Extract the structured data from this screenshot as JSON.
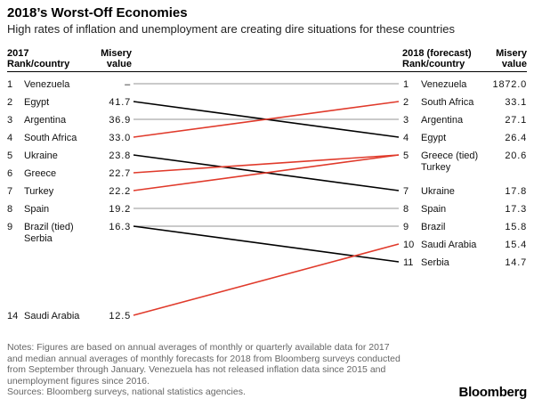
{
  "header": {
    "title": "2018’s Worst-Off Economies",
    "subtitle": "High rates of inflation and unemployment are creating dire situations for these countries"
  },
  "columns": {
    "left_rank_line1": "2017",
    "left_rank_line2": "Rank/country",
    "left_value_line1": "Misery",
    "left_value_line2": "value",
    "right_rank_line1": "2018 (forecast)",
    "right_rank_line2": "Rank/country",
    "right_value_line1": "Misery",
    "right_value_line2": "value"
  },
  "chart_data": {
    "type": "slope",
    "colors": {
      "worse": "#e03a2b",
      "better": "#000000",
      "unchanged": "#aaaaaa"
    },
    "left": [
      {
        "rank": "1",
        "country": [
          "Venezuela"
        ],
        "value": "–",
        "slot": 1
      },
      {
        "rank": "2",
        "country": [
          "Egypt"
        ],
        "value": "41.7",
        "slot": 2
      },
      {
        "rank": "3",
        "country": [
          "Argentina"
        ],
        "value": "36.9",
        "slot": 3
      },
      {
        "rank": "4",
        "country": [
          "South Africa"
        ],
        "value": "33.0",
        "slot": 4
      },
      {
        "rank": "5",
        "country": [
          "Ukraine"
        ],
        "value": "23.8",
        "slot": 5
      },
      {
        "rank": "6",
        "country": [
          "Greece"
        ],
        "value": "22.7",
        "slot": 6
      },
      {
        "rank": "7",
        "country": [
          "Turkey"
        ],
        "value": "22.2",
        "slot": 7
      },
      {
        "rank": "8",
        "country": [
          "Spain"
        ],
        "value": "19.2",
        "slot": 8
      },
      {
        "rank": "9",
        "country": [
          "Brazil (tied)",
          "Serbia"
        ],
        "value": "16.3",
        "slot": 9
      },
      {
        "rank": "14",
        "country": [
          "Saudi Arabia"
        ],
        "value": "12.5",
        "slot": 14
      }
    ],
    "right": [
      {
        "rank": "1",
        "country": [
          "Venezuela"
        ],
        "value": "1872.0",
        "slot": 1
      },
      {
        "rank": "2",
        "country": [
          "South Africa"
        ],
        "value": "33.1",
        "slot": 2
      },
      {
        "rank": "3",
        "country": [
          "Argentina"
        ],
        "value": "27.1",
        "slot": 3
      },
      {
        "rank": "4",
        "country": [
          "Egypt"
        ],
        "value": "26.4",
        "slot": 4
      },
      {
        "rank": "5",
        "country": [
          "Greece (tied)",
          "Turkey"
        ],
        "value": "20.6",
        "slot": 5
      },
      {
        "rank": "7",
        "country": [
          "Ukraine"
        ],
        "value": "17.8",
        "slot": 7
      },
      {
        "rank": "8",
        "country": [
          "Spain"
        ],
        "value": "17.3",
        "slot": 8
      },
      {
        "rank": "9",
        "country": [
          "Brazil"
        ],
        "value": "15.8",
        "slot": 9
      },
      {
        "rank": "10",
        "country": [
          "Saudi Arabia"
        ],
        "value": "15.4",
        "slot": 10
      },
      {
        "rank": "11",
        "country": [
          "Serbia"
        ],
        "value": "14.7",
        "slot": 11
      }
    ],
    "links": [
      {
        "country": "Venezuela",
        "from": 1,
        "to": 1,
        "change": "unchanged"
      },
      {
        "country": "Egypt",
        "from": 2,
        "to": 4,
        "change": "better"
      },
      {
        "country": "Argentina",
        "from": 3,
        "to": 3,
        "change": "unchanged"
      },
      {
        "country": "South Africa",
        "from": 4,
        "to": 2,
        "change": "worse"
      },
      {
        "country": "Ukraine",
        "from": 5,
        "to": 7,
        "change": "better"
      },
      {
        "country": "Greece",
        "from": 6,
        "to": 5,
        "change": "worse"
      },
      {
        "country": "Turkey",
        "from": 7,
        "to": 5,
        "change": "worse"
      },
      {
        "country": "Spain",
        "from": 8,
        "to": 8,
        "change": "unchanged"
      },
      {
        "country": "Brazil",
        "from": 9,
        "to": 9,
        "change": "unchanged"
      },
      {
        "country": "Serbia",
        "from": 9,
        "to": 11,
        "change": "better"
      },
      {
        "country": "Saudi Arabia",
        "from": 14,
        "to": 10,
        "change": "worse"
      }
    ]
  },
  "footer": {
    "notes_line1": "Notes: Figures are based on annual averages of monthly or quarterly available data for 2017",
    "notes_line2": "and median annual averages of monthly forecasts for 2018 from Bloomberg surveys conducted",
    "notes_line3": "from September through January. Venezuela has not released inflation data since 2015 and",
    "notes_line4": "unemployment figures since 2016.",
    "sources": "Sources: Bloomberg surveys, national statistics agencies.",
    "brand": "Bloomberg"
  }
}
